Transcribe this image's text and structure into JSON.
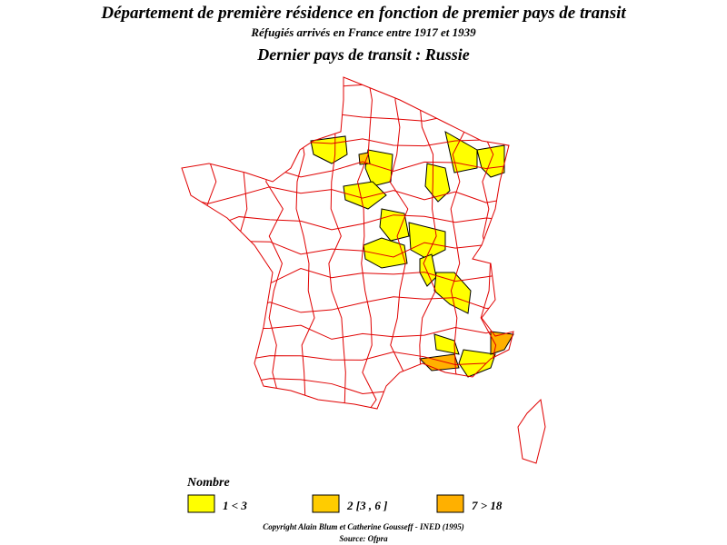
{
  "title": "Département de première résidence en fonction de premier pays de transit",
  "subtitle": "Réfugiés arrivés en France entre 1917 et 1939",
  "heading": "Dernier pays de transit : Russie",
  "legend": {
    "title": "Nombre",
    "items": [
      {
        "label": "1  <  3",
        "color": "#ffff00"
      },
      {
        "label": "2  [3 , 6 ]",
        "color": "#ffcc00"
      },
      {
        "label": "7  >  18",
        "color": "#ffb000"
      }
    ]
  },
  "footer": {
    "copyright": "Copyright Alain Blum et Catherine Gousseff - INED (1995)",
    "source": "Source: Ofpra"
  }
}
